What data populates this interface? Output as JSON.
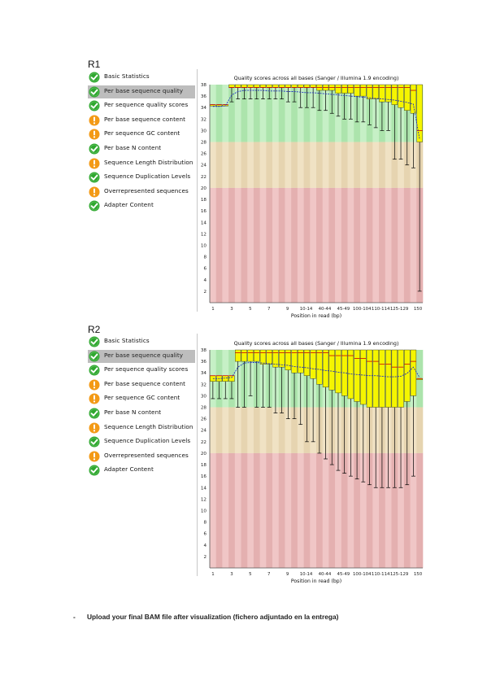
{
  "reports": [
    {
      "label": "R1",
      "modules": [
        {
          "label": "Basic Statistics",
          "status": "pass"
        },
        {
          "label": "Per base sequence quality",
          "status": "pass",
          "selected": true
        },
        {
          "label": "Per sequence quality scores",
          "status": "pass"
        },
        {
          "label": "Per base sequence content",
          "status": "warn"
        },
        {
          "label": "Per sequence GC content",
          "status": "warn"
        },
        {
          "label": "Per base N content",
          "status": "pass"
        },
        {
          "label": "Sequence Length Distribution",
          "status": "warn"
        },
        {
          "label": "Sequence Duplication Levels",
          "status": "pass"
        },
        {
          "label": "Overrepresented sequences",
          "status": "warn"
        },
        {
          "label": "Adapter Content",
          "status": "pass"
        }
      ]
    },
    {
      "label": "R2",
      "modules": [
        {
          "label": "Basic Statistics",
          "status": "pass"
        },
        {
          "label": "Per base sequence quality",
          "status": "pass",
          "selected": true
        },
        {
          "label": "Per sequence quality scores",
          "status": "pass"
        },
        {
          "label": "Per base sequence content",
          "status": "warn"
        },
        {
          "label": "Per sequence GC content",
          "status": "warn"
        },
        {
          "label": "Per base N content",
          "status": "pass"
        },
        {
          "label": "Sequence Length Distribution",
          "status": "warn"
        },
        {
          "label": "Sequence Duplication Levels",
          "status": "pass"
        },
        {
          "label": "Overrepresented sequences",
          "status": "warn"
        },
        {
          "label": "Adapter Content",
          "status": "pass"
        }
      ]
    }
  ],
  "colors": {
    "pass": "#2ea82e",
    "warn": "#f39a16",
    "zone_good": "#c6f0c6",
    "zone_good_alt": "#ace4ac",
    "zone_mid": "#f0e2c4",
    "zone_mid_alt": "#e6d4b0",
    "zone_bad": "#f0c6c6",
    "zone_bad_alt": "#e4b0b0",
    "box": "#f5f500",
    "median": "#cc0000",
    "mean": "#2030c0"
  },
  "chart_data": [
    {
      "type": "box",
      "title": "Quality scores across all bases (Sanger / Illumina 1.9 encoding)",
      "xlabel": "Position in read (bp)",
      "ylabel": "",
      "ylim": [
        0,
        38
      ],
      "yticks": [
        2,
        4,
        6,
        8,
        10,
        12,
        14,
        16,
        18,
        20,
        22,
        24,
        26,
        28,
        30,
        32,
        34,
        36,
        38
      ],
      "xtick_labels": [
        "1",
        "3",
        "5",
        "7",
        "9",
        "10-14",
        "40-44",
        "45-49",
        "100-104",
        "110-114",
        "125-129",
        "150"
      ],
      "zones": {
        "good": [
          28,
          38
        ],
        "mid": [
          20,
          28
        ],
        "bad": [
          0,
          20
        ]
      },
      "positions": 34,
      "boxes": [
        {
          "q1": 34.5,
          "q3": 34.5,
          "median": 34.5,
          "low": 34.5,
          "high": 34.5
        },
        {
          "q1": 34.5,
          "q3": 34.5,
          "median": 34.5,
          "low": 34.5,
          "high": 34.5
        },
        {
          "q1": 34.5,
          "q3": 34.5,
          "median": 34.5,
          "low": 34.5,
          "high": 34.5
        },
        {
          "q1": 37.5,
          "q3": 38,
          "median": 37.5,
          "low": 35,
          "high": 38
        },
        {
          "q1": 37.5,
          "q3": 38,
          "median": 37.5,
          "low": 35.5,
          "high": 38
        },
        {
          "q1": 37.5,
          "q3": 38,
          "median": 37.5,
          "low": 35.5,
          "high": 38
        },
        {
          "q1": 37.5,
          "q3": 38,
          "median": 37.5,
          "low": 35.5,
          "high": 38
        },
        {
          "q1": 37.5,
          "q3": 38,
          "median": 37.5,
          "low": 35.5,
          "high": 38
        },
        {
          "q1": 37.5,
          "q3": 38,
          "median": 37.5,
          "low": 35.5,
          "high": 38
        },
        {
          "q1": 37.5,
          "q3": 38,
          "median": 37.5,
          "low": 35.5,
          "high": 38
        },
        {
          "q1": 37.5,
          "q3": 38,
          "median": 37.5,
          "low": 35.5,
          "high": 38
        },
        {
          "q1": 37.5,
          "q3": 38,
          "median": 37.5,
          "low": 35.5,
          "high": 38
        },
        {
          "q1": 37.5,
          "q3": 38,
          "median": 37.5,
          "low": 35,
          "high": 38
        },
        {
          "q1": 37.5,
          "q3": 38,
          "median": 37.5,
          "low": 35,
          "high": 38
        },
        {
          "q1": 37.5,
          "q3": 38,
          "median": 37.5,
          "low": 34,
          "high": 38
        },
        {
          "q1": 37.5,
          "q3": 38,
          "median": 37.5,
          "low": 34,
          "high": 38
        },
        {
          "q1": 37.5,
          "q3": 38,
          "median": 37.5,
          "low": 34,
          "high": 38
        },
        {
          "q1": 37,
          "q3": 38,
          "median": 37.5,
          "low": 33.5,
          "high": 38
        },
        {
          "q1": 37,
          "q3": 38,
          "median": 37.5,
          "low": 33.5,
          "high": 38
        },
        {
          "q1": 37,
          "q3": 38,
          "median": 37.5,
          "low": 33,
          "high": 38
        },
        {
          "q1": 36.5,
          "q3": 38,
          "median": 37.5,
          "low": 32.5,
          "high": 38
        },
        {
          "q1": 36.5,
          "q3": 38,
          "median": 37.5,
          "low": 32,
          "high": 38
        },
        {
          "q1": 36.5,
          "q3": 38,
          "median": 37.5,
          "low": 32,
          "high": 38
        },
        {
          "q1": 36,
          "q3": 38,
          "median": 37.5,
          "low": 31.5,
          "high": 38
        },
        {
          "q1": 36,
          "q3": 38,
          "median": 37.5,
          "low": 31.5,
          "high": 38
        },
        {
          "q1": 35.5,
          "q3": 38,
          "median": 37.5,
          "low": 31,
          "high": 38
        },
        {
          "q1": 35.5,
          "q3": 38,
          "median": 37.5,
          "low": 30.5,
          "high": 38
        },
        {
          "q1": 35,
          "q3": 38,
          "median": 37.5,
          "low": 30,
          "high": 38
        },
        {
          "q1": 35,
          "q3": 38,
          "median": 37.5,
          "low": 30,
          "high": 38
        },
        {
          "q1": 34.5,
          "q3": 38,
          "median": 37.5,
          "low": 25,
          "high": 38
        },
        {
          "q1": 34,
          "q3": 38,
          "median": 37.5,
          "low": 25,
          "high": 38
        },
        {
          "q1": 33.5,
          "q3": 38,
          "median": 37.5,
          "low": 24,
          "high": 38
        },
        {
          "q1": 33,
          "q3": 38,
          "median": 37,
          "low": 23.5,
          "high": 38
        },
        {
          "q1": 28,
          "q3": 38,
          "median": 30,
          "low": 2,
          "high": 38
        }
      ],
      "mean": [
        34.2,
        34.2,
        34.3,
        36.2,
        36.8,
        37.0,
        37.0,
        37.0,
        37.0,
        36.9,
        36.9,
        36.9,
        36.8,
        36.8,
        36.7,
        36.6,
        36.6,
        36.5,
        36.4,
        36.3,
        36.2,
        36.1,
        36.0,
        35.9,
        35.8,
        35.7,
        35.6,
        35.5,
        35.4,
        35.3,
        35.1,
        34.9,
        34.6,
        28.5
      ]
    },
    {
      "type": "box",
      "title": "Quality scores across all bases (Sanger / Illumina 1.9 encoding)",
      "xlabel": "Position in read (bp)",
      "ylabel": "",
      "ylim": [
        0,
        38
      ],
      "yticks": [
        2,
        4,
        6,
        8,
        10,
        12,
        14,
        16,
        18,
        20,
        22,
        24,
        26,
        28,
        30,
        32,
        34,
        36,
        38
      ],
      "xtick_labels": [
        "1",
        "3",
        "5",
        "7",
        "9",
        "10-14",
        "40-44",
        "45-49",
        "100-104",
        "110-114",
        "125-129",
        "150"
      ],
      "zones": {
        "good": [
          28,
          38
        ],
        "mid": [
          20,
          28
        ],
        "bad": [
          0,
          20
        ]
      },
      "positions": 34,
      "boxes": [
        {
          "q1": 32.5,
          "q3": 33.5,
          "median": 33.5,
          "low": 29.5,
          "high": 33.5
        },
        {
          "q1": 32.5,
          "q3": 33.5,
          "median": 33.5,
          "low": 29.5,
          "high": 33.5
        },
        {
          "q1": 32.5,
          "q3": 33.5,
          "median": 33.5,
          "low": 29.5,
          "high": 33.5
        },
        {
          "q1": 32.5,
          "q3": 33.5,
          "median": 33.5,
          "low": 29.5,
          "high": 33.5
        },
        {
          "q1": 36,
          "q3": 38,
          "median": 37.5,
          "low": 28,
          "high": 38
        },
        {
          "q1": 36,
          "q3": 38,
          "median": 37.5,
          "low": 28,
          "high": 38
        },
        {
          "q1": 36,
          "q3": 38,
          "median": 37.5,
          "low": 30,
          "high": 38
        },
        {
          "q1": 36,
          "q3": 38,
          "median": 37.5,
          "low": 28,
          "high": 38
        },
        {
          "q1": 35.5,
          "q3": 38,
          "median": 37.5,
          "low": 28,
          "high": 38
        },
        {
          "q1": 35.5,
          "q3": 38,
          "median": 37.5,
          "low": 28,
          "high": 38
        },
        {
          "q1": 35,
          "q3": 38,
          "median": 37.5,
          "low": 27,
          "high": 38
        },
        {
          "q1": 35,
          "q3": 38,
          "median": 37.5,
          "low": 27,
          "high": 38
        },
        {
          "q1": 34.5,
          "q3": 38,
          "median": 37.5,
          "low": 26,
          "high": 38
        },
        {
          "q1": 34,
          "q3": 38,
          "median": 37.5,
          "low": 26,
          "high": 38
        },
        {
          "q1": 34,
          "q3": 38,
          "median": 37.5,
          "low": 25,
          "high": 38
        },
        {
          "q1": 33.5,
          "q3": 38,
          "median": 37.5,
          "low": 22,
          "high": 38
        },
        {
          "q1": 33,
          "q3": 38,
          "median": 37.5,
          "low": 22,
          "high": 38
        },
        {
          "q1": 32,
          "q3": 38,
          "median": 37.5,
          "low": 20,
          "high": 38
        },
        {
          "q1": 31.5,
          "q3": 38,
          "median": 37.5,
          "low": 19,
          "high": 38
        },
        {
          "q1": 31,
          "q3": 38,
          "median": 37,
          "low": 18,
          "high": 38
        },
        {
          "q1": 30.5,
          "q3": 38,
          "median": 37,
          "low": 17,
          "high": 38
        },
        {
          "q1": 30,
          "q3": 38,
          "median": 37,
          "low": 16.5,
          "high": 38
        },
        {
          "q1": 29.5,
          "q3": 38,
          "median": 37,
          "low": 16,
          "high": 38
        },
        {
          "q1": 29,
          "q3": 38,
          "median": 36.5,
          "low": 15.5,
          "high": 38
        },
        {
          "q1": 28.5,
          "q3": 38,
          "median": 36.5,
          "low": 15,
          "high": 38
        },
        {
          "q1": 28,
          "q3": 38,
          "median": 36,
          "low": 14.5,
          "high": 38
        },
        {
          "q1": 28,
          "q3": 38,
          "median": 36,
          "low": 14,
          "high": 38
        },
        {
          "q1": 28,
          "q3": 38,
          "median": 35.5,
          "low": 14,
          "high": 38
        },
        {
          "q1": 28,
          "q3": 38,
          "median": 35.5,
          "low": 14,
          "high": 38
        },
        {
          "q1": 28,
          "q3": 38,
          "median": 35,
          "low": 14,
          "high": 38
        },
        {
          "q1": 28,
          "q3": 38,
          "median": 35,
          "low": 14,
          "high": 38
        },
        {
          "q1": 29,
          "q3": 38,
          "median": 35.5,
          "low": 14.5,
          "high": 38
        },
        {
          "q1": 30,
          "q3": 38,
          "median": 36,
          "low": 16,
          "high": 38
        },
        {
          "q1": 33,
          "q3": 33,
          "median": 33,
          "low": 33,
          "high": 33
        }
      ],
      "mean": [
        33.0,
        33.0,
        33.1,
        33.2,
        35.0,
        35.7,
        35.8,
        35.8,
        35.7,
        35.6,
        35.5,
        35.4,
        35.3,
        35.1,
        35.0,
        34.9,
        34.7,
        34.6,
        34.4,
        34.3,
        34.1,
        34.0,
        33.8,
        33.7,
        33.6,
        33.5,
        33.5,
        33.4,
        33.3,
        33.3,
        33.4,
        33.9,
        35.0,
        33.2
      ]
    }
  ],
  "footer": {
    "dash": "-",
    "text": "Upload your final BAM file after visualization (fichero adjuntado en la entrega)"
  }
}
